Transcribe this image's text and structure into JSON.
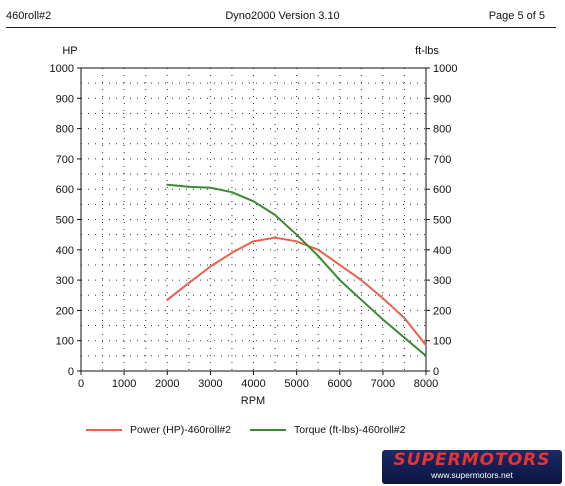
{
  "header": {
    "left": "460roll#2",
    "center": "Dyno2000  Version 3.10",
    "right": "Page 5 of 5"
  },
  "chart_data": {
    "type": "line",
    "title": "",
    "xlabel": "RPM",
    "ylabel_left": "HP",
    "ylabel_right": "ft-lbs",
    "xlim": [
      0,
      8000
    ],
    "ylim": [
      0,
      1000
    ],
    "xticks": [
      "0",
      "1000",
      "2000",
      "3000",
      "4000",
      "5000",
      "6000",
      "7000",
      "8000"
    ],
    "yticks": [
      "0",
      "100",
      "200",
      "300",
      "400",
      "500",
      "600",
      "700",
      "800",
      "900",
      "1000"
    ],
    "grid": true,
    "legend_position": "bottom",
    "series": [
      {
        "name": "Power (HP)-460roll#2",
        "color": "#e8614d",
        "axis": "left",
        "points": [
          [
            2000,
            235
          ],
          [
            2500,
            290
          ],
          [
            3000,
            345
          ],
          [
            3500,
            390
          ],
          [
            4000,
            428
          ],
          [
            4500,
            440
          ],
          [
            5000,
            428
          ],
          [
            5500,
            400
          ],
          [
            6000,
            350
          ],
          [
            6500,
            300
          ],
          [
            7000,
            240
          ],
          [
            7500,
            175
          ],
          [
            8000,
            85
          ]
        ]
      },
      {
        "name": "Torque (ft-lbs)-460roll#2",
        "color": "#3a8a34",
        "axis": "right",
        "points": [
          [
            2000,
            615
          ],
          [
            2500,
            608
          ],
          [
            3000,
            605
          ],
          [
            3500,
            590
          ],
          [
            4000,
            560
          ],
          [
            4500,
            515
          ],
          [
            5000,
            450
          ],
          [
            5500,
            380
          ],
          [
            6000,
            300
          ],
          [
            6500,
            235
          ],
          [
            7000,
            170
          ],
          [
            7500,
            110
          ],
          [
            8000,
            50
          ]
        ]
      }
    ]
  },
  "logo": {
    "name": "SUPERMOTORS",
    "url": "www.supermotors.net"
  }
}
